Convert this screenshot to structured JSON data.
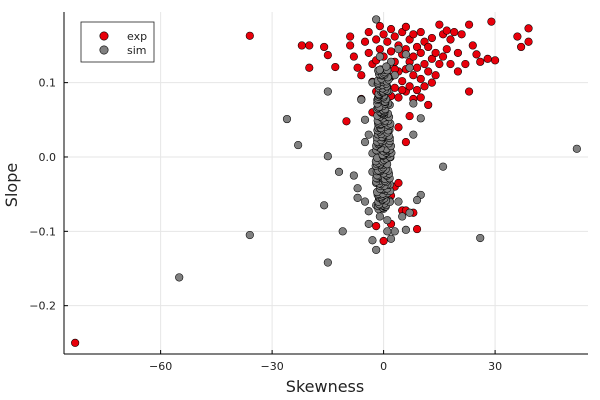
{
  "chart_data": {
    "type": "scatter",
    "xlabel": "Skewness",
    "ylabel": "Slope",
    "xlim": [
      -86,
      55
    ],
    "ylim": [
      -0.265,
      0.195
    ],
    "x_ticks": [
      -60,
      -30,
      0,
      30
    ],
    "y_ticks": [
      -0.2,
      -0.1,
      0.0,
      0.1
    ],
    "x_tick_labels": [
      "−60",
      "−30",
      "0",
      "30"
    ],
    "y_tick_labels": [
      "−0.2",
      "−0.1",
      "0.0",
      "0.1"
    ],
    "grid": true,
    "legend_position": "top-left",
    "series": [
      {
        "name": "exp",
        "color": "#e8000b",
        "points": [
          [
            -83,
            -0.25
          ],
          [
            -36,
            0.163
          ],
          [
            -22,
            0.15
          ],
          [
            -20,
            0.15
          ],
          [
            -20,
            0.12
          ],
          [
            -16,
            0.148
          ],
          [
            -15,
            0.137
          ],
          [
            -13,
            0.121
          ],
          [
            -10,
            0.048
          ],
          [
            -9,
            0.15
          ],
          [
            -9,
            0.162
          ],
          [
            -8,
            0.135
          ],
          [
            -7,
            0.12
          ],
          [
            -6,
            0.11
          ],
          [
            -6,
            0.078
          ],
          [
            -5,
            0.155
          ],
          [
            -4,
            0.168
          ],
          [
            -4,
            0.14
          ],
          [
            -3,
            0.125
          ],
          [
            -3,
            0.101
          ],
          [
            -2,
            0.158
          ],
          [
            -2,
            0.13
          ],
          [
            -2,
            0.088
          ],
          [
            -1,
            0.176
          ],
          [
            -1,
            0.145
          ],
          [
            -1,
            0.112
          ],
          [
            0,
            0.165
          ],
          [
            0,
            0.135
          ],
          [
            0,
            0.095
          ],
          [
            1,
            0.155
          ],
          [
            1,
            0.122
          ],
          [
            1,
            0.07
          ],
          [
            2,
            0.172
          ],
          [
            2,
            0.142
          ],
          [
            2,
            0.108
          ],
          [
            3,
            0.162
          ],
          [
            3,
            0.128
          ],
          [
            3,
            0.093
          ],
          [
            4,
            0.15
          ],
          [
            4,
            0.115
          ],
          [
            4,
            0.08
          ],
          [
            5,
            0.168
          ],
          [
            5,
            0.138
          ],
          [
            5,
            0.102
          ],
          [
            6,
            0.175
          ],
          [
            6,
            0.145
          ],
          [
            6,
            0.118
          ],
          [
            6,
            0.088
          ],
          [
            7,
            0.158
          ],
          [
            7,
            0.128
          ],
          [
            7,
            0.095
          ],
          [
            8,
            0.165
          ],
          [
            8,
            0.135
          ],
          [
            8,
            0.11
          ],
          [
            8,
            0.078
          ],
          [
            9,
            0.148
          ],
          [
            9,
            0.12
          ],
          [
            9,
            0.09
          ],
          [
            10,
            0.168
          ],
          [
            10,
            0.14
          ],
          [
            10,
            0.105
          ],
          [
            11,
            0.155
          ],
          [
            11,
            0.125
          ],
          [
            11,
            0.095
          ],
          [
            12,
            0.148
          ],
          [
            12,
            0.115
          ],
          [
            13,
            0.16
          ],
          [
            13,
            0.132
          ],
          [
            13,
            0.1
          ],
          [
            14,
            0.14
          ],
          [
            14,
            0.11
          ],
          [
            15,
            0.178
          ],
          [
            15,
            0.125
          ],
          [
            16,
            0.165
          ],
          [
            16,
            0.135
          ],
          [
            17,
            0.17
          ],
          [
            17,
            0.145
          ],
          [
            18,
            0.158
          ],
          [
            18,
            0.125
          ],
          [
            19,
            0.168
          ],
          [
            20,
            0.14
          ],
          [
            20,
            0.115
          ],
          [
            21,
            0.165
          ],
          [
            22,
            0.125
          ],
          [
            23,
            0.178
          ],
          [
            23,
            0.088
          ],
          [
            24,
            0.15
          ],
          [
            25,
            0.138
          ],
          [
            26,
            0.128
          ],
          [
            28,
            0.132
          ],
          [
            29,
            0.182
          ],
          [
            30,
            0.13
          ],
          [
            36,
            0.162
          ],
          [
            37,
            0.148
          ],
          [
            39,
            0.173
          ],
          [
            39,
            0.155
          ],
          [
            1,
            -0.04
          ],
          [
            3,
            -0.04
          ],
          [
            4,
            -0.035
          ],
          [
            5,
            -0.072
          ],
          [
            6,
            -0.072
          ],
          [
            8,
            -0.075
          ],
          [
            9,
            -0.097
          ],
          [
            0,
            -0.113
          ],
          [
            -2,
            -0.093
          ],
          [
            2,
            -0.052
          ],
          [
            -3,
            0.06
          ],
          [
            4,
            0.04
          ],
          [
            7,
            0.055
          ],
          [
            12,
            0.07
          ],
          [
            5,
            0.09
          ],
          [
            2,
            0.082
          ],
          [
            -1,
            0.1
          ],
          [
            3,
            0.118
          ],
          [
            1,
            0.048
          ],
          [
            2,
            -0.09
          ],
          [
            6,
            0.02
          ],
          [
            10,
            0.08
          ]
        ]
      },
      {
        "name": "sim",
        "color": "#808080",
        "points": [
          [
            -55,
            -0.162
          ],
          [
            -36,
            -0.105
          ],
          [
            -26,
            0.051
          ],
          [
            -23,
            0.016
          ],
          [
            -16,
            -0.065
          ],
          [
            -15,
            0.088
          ],
          [
            -15,
            0.001
          ],
          [
            -15,
            -0.142
          ],
          [
            -12,
            -0.02
          ],
          [
            -11,
            -0.1
          ],
          [
            -8,
            -0.025
          ],
          [
            -7,
            -0.042
          ],
          [
            -7,
            -0.055
          ],
          [
            -6,
            0.077
          ],
          [
            -5,
            0.05
          ],
          [
            -5,
            0.02
          ],
          [
            -5,
            -0.06
          ],
          [
            -4,
            0.03
          ],
          [
            -4,
            -0.073
          ],
          [
            -4,
            -0.09
          ],
          [
            -3,
            0.1
          ],
          [
            -3,
            0.005
          ],
          [
            -3,
            -0.02
          ],
          [
            -3,
            -0.112
          ],
          [
            -2,
            0.185
          ],
          [
            -2,
            -0.125
          ],
          [
            -1,
            0.135
          ],
          [
            -1,
            0.055
          ],
          [
            -1,
            -0.045
          ],
          [
            -1,
            -0.08
          ],
          [
            10,
            0.052
          ],
          [
            10,
            -0.051
          ],
          [
            9,
            -0.058
          ],
          [
            7,
            -0.075
          ],
          [
            6,
            -0.098
          ],
          [
            5,
            -0.08
          ],
          [
            8,
            0.03
          ],
          [
            8,
            0.072
          ],
          [
            7,
            0.12
          ],
          [
            6,
            0.138
          ],
          [
            4,
            0.145
          ],
          [
            3,
            0.11
          ],
          [
            3,
            -0.1
          ],
          [
            2,
            0.128
          ],
          [
            2,
            -0.11
          ],
          [
            16,
            -0.013
          ],
          [
            26,
            -0.109
          ],
          [
            52,
            0.011
          ],
          [
            1,
            -0.085
          ],
          [
            -2,
            -0.065
          ],
          [
            1,
            -0.1
          ],
          [
            4,
            -0.06
          ],
          [
            -2,
            -0.035
          ]
        ],
        "dense_core": {
          "x_center": 0,
          "y_range": [
            -0.07,
            0.12
          ]
        }
      }
    ]
  }
}
